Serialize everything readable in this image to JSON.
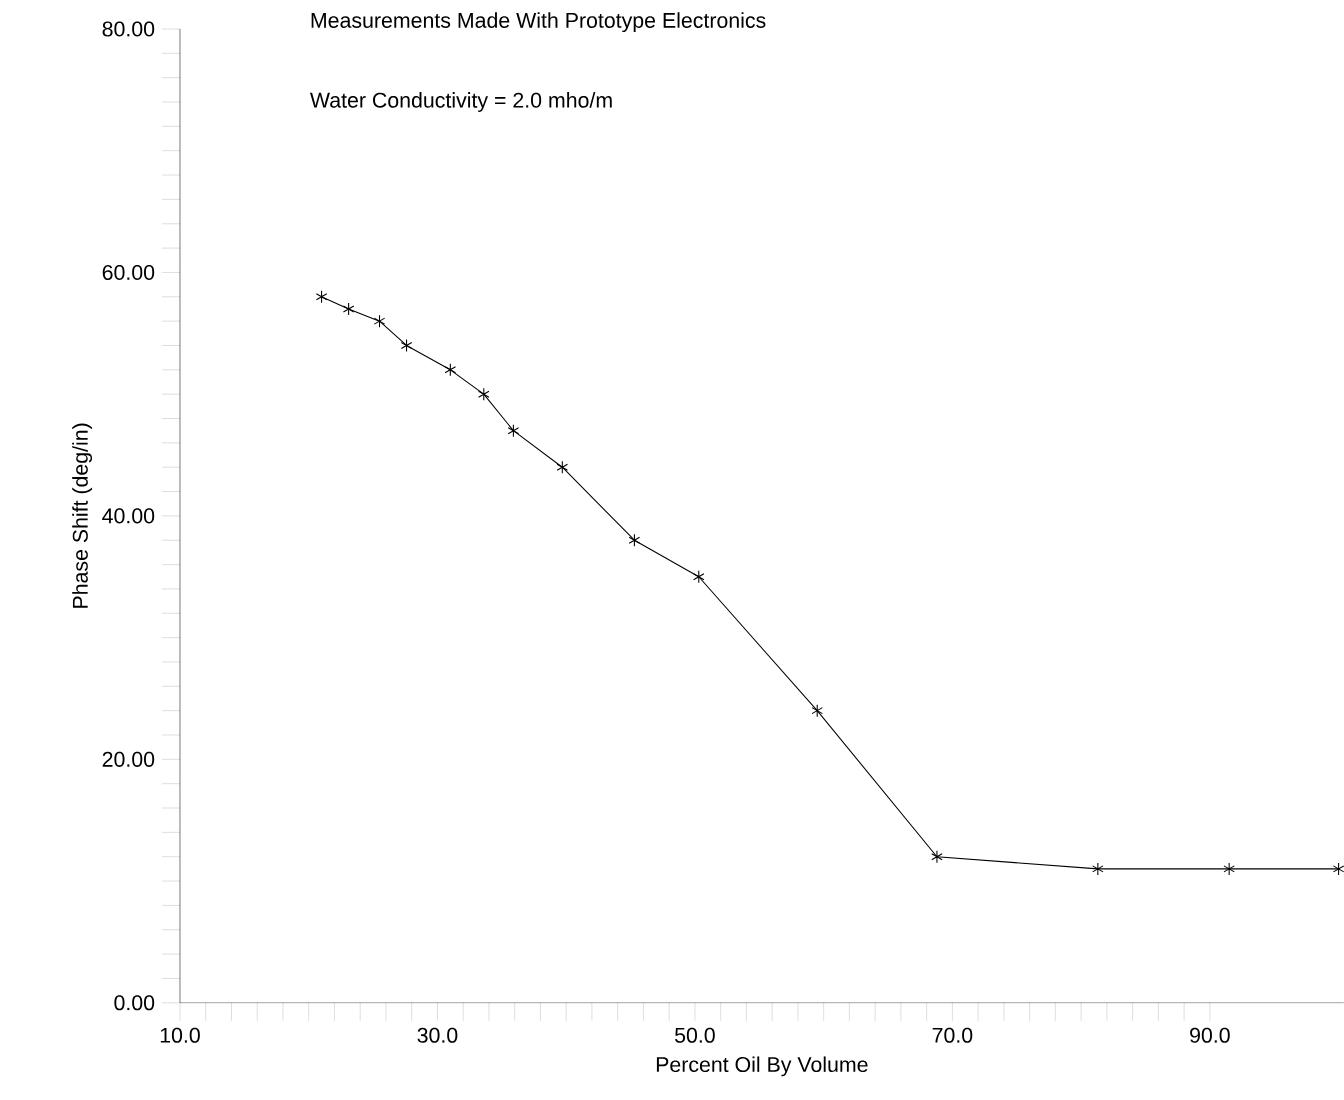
{
  "chart_data": {
    "type": "line",
    "title": "Measurements Made With Prototype Electronics",
    "subtitle": "Water Conductivity = 2.0 mho/m",
    "xlabel": "Percent Oil By Volume",
    "ylabel": "Phase Shift (deg/in)",
    "x": [
      21.0,
      23.1,
      25.5,
      27.6,
      31.0,
      33.6,
      35.9,
      39.7,
      45.3,
      50.3,
      59.5,
      68.8,
      81.3,
      91.5,
      100.0
    ],
    "series": [
      {
        "color": "#000000",
        "values": [
          58.0,
          57.0,
          56.0,
          54.0,
          52.0,
          50.0,
          47.0,
          44.0,
          38.0,
          35.0,
          24.0,
          12.0,
          11.0,
          11.0,
          11.0
        ]
      }
    ],
    "marker": "cross",
    "line_style": "solid",
    "grid": false,
    "legend": false,
    "xlim": [
      10,
      100.4
    ],
    "ylim": [
      0,
      80
    ],
    "xticks": [
      {
        "value": 10,
        "label": "10.0"
      },
      {
        "value": 30,
        "label": "30.0"
      },
      {
        "value": 50,
        "label": "50.0"
      },
      {
        "value": 70,
        "label": "70.0"
      },
      {
        "value": 90,
        "label": "90.0"
      }
    ],
    "yticks": [
      {
        "value": 0,
        "label": "0.00"
      },
      {
        "value": 20,
        "label": "20.00"
      },
      {
        "value": 40,
        "label": "40.00"
      },
      {
        "value": 60,
        "label": "60.00"
      },
      {
        "value": 80,
        "label": "80.00"
      }
    ]
  }
}
